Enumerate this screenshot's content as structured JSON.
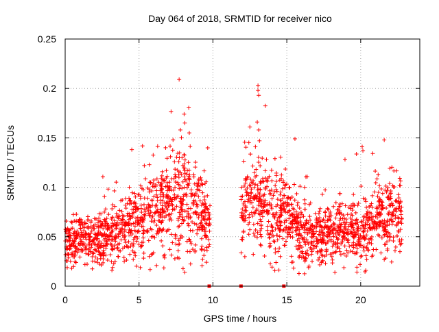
{
  "chart_data": {
    "type": "scatter",
    "title": "Day 064 of 2018, SRMTID for receiver nico",
    "xlabel": "GPS time / hours",
    "ylabel": "SRMTID / TECUs",
    "xlim": [
      0,
      24
    ],
    "ylim": [
      0,
      0.25
    ],
    "xticks": [
      0,
      5,
      10,
      15,
      20
    ],
    "yticks": [
      0,
      0.05,
      0.1,
      0.15,
      0.2,
      0.25
    ],
    "xtick_labels": [
      "0",
      "5",
      "10",
      "15",
      "20"
    ],
    "ytick_labels": [
      "0",
      "0.05",
      "0.1",
      "0.15",
      "0.2",
      "0.25"
    ],
    "grid": true,
    "marker": "plus",
    "color": "#ff0000",
    "series": [
      {
        "name": "SRMTID",
        "segments": [
          {
            "x_start": 0.0,
            "x_end": 9.8,
            "trend_x": [
              0,
              1,
              2,
              3,
              4,
              5,
              6,
              7,
              8,
              9,
              9.8
            ],
            "trend_y": [
              0.045,
              0.047,
              0.046,
              0.048,
              0.055,
              0.065,
              0.078,
              0.085,
              0.088,
              0.08,
              0.06
            ],
            "n_points": 1050
          },
          {
            "x_start": 11.9,
            "x_end": 22.8,
            "trend_x": [
              11.9,
              12.5,
              13,
              13.5,
              14,
              14.5,
              15,
              16,
              17,
              18,
              19,
              20,
              21,
              22,
              22.8
            ],
            "trend_y": [
              0.075,
              0.078,
              0.085,
              0.08,
              0.075,
              0.075,
              0.07,
              0.058,
              0.055,
              0.055,
              0.055,
              0.055,
              0.065,
              0.07,
              0.065
            ],
            "n_points": 1150
          }
        ],
        "outliers": [
          {
            "x": 8.05,
            "y": 0.174
          },
          {
            "x": 8.1,
            "y": 0.165
          },
          {
            "x": 7.8,
            "y": 0.158
          },
          {
            "x": 8.4,
            "y": 0.155
          },
          {
            "x": 7.3,
            "y": 0.148
          },
          {
            "x": 6.8,
            "y": 0.14
          },
          {
            "x": 13.05,
            "y": 0.203
          },
          {
            "x": 13.05,
            "y": 0.198
          },
          {
            "x": 13.1,
            "y": 0.193
          },
          {
            "x": 12.5,
            "y": 0.161
          },
          {
            "x": 13.0,
            "y": 0.166
          },
          {
            "x": 13.1,
            "y": 0.158
          },
          {
            "x": 13.15,
            "y": 0.147
          },
          {
            "x": 15.55,
            "y": 0.149
          },
          {
            "x": 20.1,
            "y": 0.141
          },
          {
            "x": 20.15,
            "y": 0.137
          }
        ],
        "baseline_markers": [
          {
            "x": 9.75,
            "y": 0
          },
          {
            "x": 11.9,
            "y": 0
          },
          {
            "x": 14.8,
            "y": 0
          }
        ]
      }
    ]
  }
}
